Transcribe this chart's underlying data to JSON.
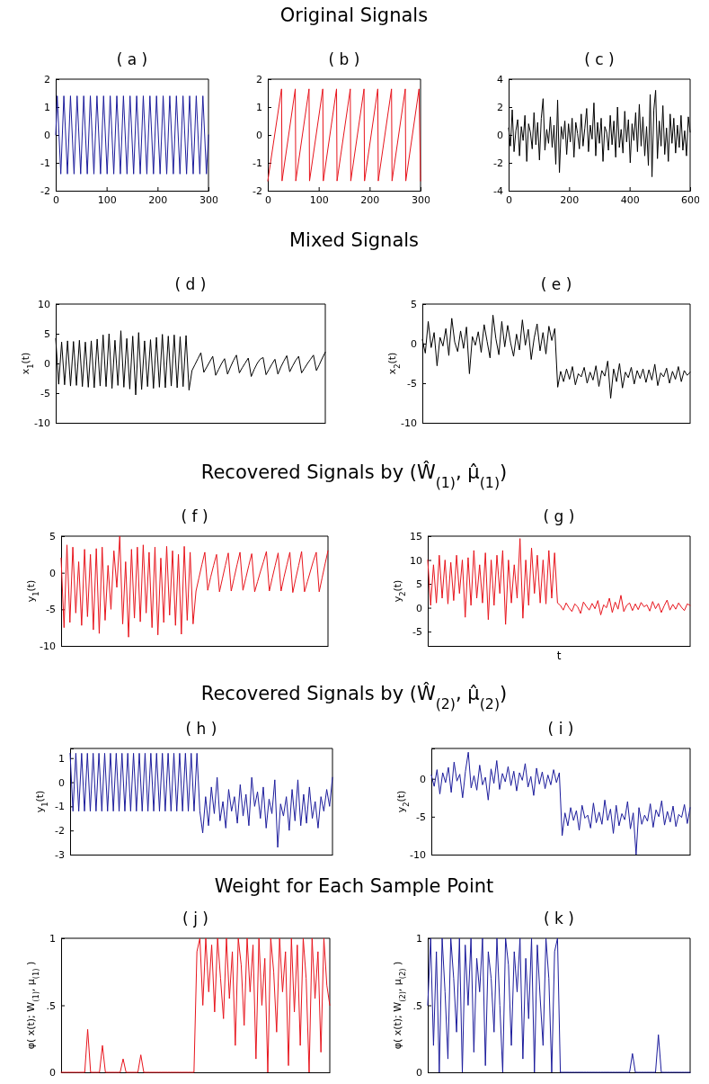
{
  "chart_data": [
    {
      "type": "other",
      "title": "Original Signals"
    },
    {
      "type": "line",
      "title": "( a )",
      "xlim": [
        0,
        300
      ],
      "xticks": [
        0,
        100,
        200,
        300
      ],
      "ylim": [
        -2,
        2
      ],
      "yticks": [
        -2,
        -1,
        0,
        1,
        2
      ],
      "series": [
        {
          "color": "#1c1c9c",
          "x": [
            0,
            3,
            10,
            16,
            23,
            29,
            36,
            42,
            49,
            55,
            62,
            68,
            75,
            81,
            88,
            94,
            101,
            107,
            114,
            120,
            127,
            133,
            140,
            146,
            153,
            159,
            166,
            172,
            179,
            185,
            192,
            198,
            205,
            211,
            218,
            224,
            231,
            237,
            244,
            250,
            257,
            263,
            270,
            276,
            283,
            289,
            296,
            300
          ],
          "values": [
            0,
            1.4,
            -1.4,
            1.4,
            -1.4,
            1.4,
            -1.4,
            1.4,
            -1.4,
            1.4,
            -1.4,
            1.4,
            -1.4,
            1.4,
            -1.4,
            1.4,
            -1.4,
            1.4,
            -1.4,
            1.4,
            -1.4,
            1.4,
            -1.4,
            1.4,
            -1.4,
            1.4,
            -1.4,
            1.4,
            -1.4,
            1.4,
            -1.4,
            1.4,
            -1.4,
            1.4,
            -1.4,
            1.4,
            -1.4,
            1.4,
            -1.4,
            1.4,
            -1.4,
            1.4,
            -1.4,
            1.4,
            -1.4,
            1.4,
            -1.4,
            0
          ]
        }
      ]
    },
    {
      "type": "line",
      "title": "( b )",
      "xlim": [
        0,
        300
      ],
      "xticks": [
        0,
        100,
        200,
        300
      ],
      "ylim": [
        -2,
        2
      ],
      "yticks": [
        -2,
        -1,
        0,
        1,
        2
      ],
      "series": [
        {
          "color": "#e8141c",
          "x": [
            0,
            27,
            28,
            54,
            55,
            81,
            82,
            108,
            109,
            135,
            136,
            162,
            163,
            189,
            190,
            216,
            217,
            243,
            244,
            270,
            271,
            297,
            300
          ],
          "values": [
            -1.65,
            1.65,
            -1.65,
            1.65,
            -1.65,
            1.65,
            -1.65,
            1.65,
            -1.65,
            1.65,
            -1.65,
            1.65,
            -1.65,
            1.65,
            -1.65,
            1.65,
            -1.65,
            1.65,
            -1.65,
            1.65,
            -1.65,
            1.65,
            -1.65
          ]
        }
      ]
    },
    {
      "type": "line",
      "title": "( c )",
      "xlim": [
        0,
        600
      ],
      "xticks": [
        0,
        200,
        400,
        600
      ],
      "ylim": [
        -4,
        4
      ],
      "yticks": [
        -4,
        -2,
        0,
        2,
        4
      ],
      "series": [
        {
          "color": "#000000",
          "x": [
            0,
            6,
            12,
            18,
            24,
            30,
            36,
            42,
            48,
            54,
            60,
            66,
            72,
            78,
            84,
            90,
            96,
            102,
            108,
            114,
            120,
            126,
            132,
            138,
            144,
            150,
            156,
            162,
            168,
            174,
            180,
            186,
            192,
            198,
            204,
            210,
            216,
            222,
            228,
            234,
            240,
            246,
            252,
            258,
            264,
            270,
            276,
            282,
            288,
            294,
            300,
            306,
            312,
            318,
            324,
            330,
            336,
            342,
            348,
            354,
            360,
            366,
            372,
            378,
            384,
            390,
            396,
            402,
            408,
            414,
            420,
            426,
            432,
            438,
            444,
            450,
            456,
            462,
            468,
            474,
            480,
            486,
            492,
            498,
            504,
            510,
            516,
            522,
            528,
            534,
            540,
            546,
            552,
            558,
            564,
            570,
            576,
            582,
            588,
            594,
            600
          ],
          "values": [
            0.5,
            -0.8,
            1.8,
            -1.2,
            0.3,
            1.1,
            -1.5,
            0.6,
            -0.4,
            1.4,
            -1.9,
            0.8,
            0.2,
            -1.0,
            1.6,
            -0.7,
            0.9,
            -1.8,
            1.2,
            2.6,
            -1.1,
            0.4,
            -0.6,
            1.3,
            -0.9,
            0.7,
            -2.1,
            2.5,
            -2.7,
            0.6,
            -0.3,
            1.0,
            -1.4,
            0.8,
            -0.5,
            1.2,
            -1.6,
            0.9,
            0.1,
            -1.0,
            1.5,
            -0.8,
            0.5,
            1.9,
            -1.2,
            0.7,
            -0.3,
            2.3,
            -1.5,
            0.9,
            -0.6,
            1.2,
            -1.9,
            0.6,
            0.2,
            -1.1,
            1.4,
            -0.7,
            1.0,
            -1.6,
            2.0,
            -0.9,
            0.4,
            -1.3,
            1.7,
            -0.5,
            1.1,
            -2.0,
            0.8,
            -0.4,
            1.6,
            -1.2,
            2.2,
            -0.8,
            1.3,
            -1.5,
            0.6,
            -2.2,
            2.9,
            -3.0,
            1.8,
            3.2,
            -1.7,
            1.0,
            -0.8,
            2.1,
            -1.4,
            0.5,
            -1.9,
            1.5,
            -0.6,
            1.2,
            -1.3,
            0.7,
            -0.9,
            1.4,
            -1.1,
            0.3,
            -1.5,
            1.3,
            0.2
          ]
        }
      ]
    },
    {
      "type": "other",
      "title": "Mixed Signals"
    },
    {
      "type": "line",
      "title": "( d )",
      "ylabel": "x$_{1}$(t)",
      "ylim": [
        -10,
        10
      ],
      "yticks": [
        -10,
        -5,
        0,
        5,
        10
      ],
      "tick_labels": "y",
      "categories": [
        null,
        null,
        null,
        null,
        null,
        null,
        null,
        null,
        null,
        null,
        null,
        null,
        null,
        null,
        null,
        null,
        null,
        null,
        null,
        null,
        null,
        null,
        null,
        null,
        null,
        null,
        null,
        null,
        null,
        null,
        null,
        null,
        null,
        null,
        null,
        null,
        null,
        null,
        null,
        null,
        null,
        null,
        null,
        null,
        null,
        null,
        null,
        null,
        null,
        null,
        null,
        null,
        null,
        null,
        null,
        null,
        null,
        null,
        null,
        null,
        null,
        null,
        null,
        null,
        null,
        null,
        null,
        null,
        null,
        null,
        null,
        null,
        null,
        null,
        null,
        null,
        null,
        null,
        null,
        null,
        null,
        null,
        null,
        null,
        null,
        null,
        null,
        null,
        null,
        null,
        null,
        null
      ],
      "series": [
        {
          "color": "#000000",
          "values": [
            4.2,
            -3.5,
            3.6,
            -3.6,
            3.8,
            -3.8,
            3.7,
            -3.7,
            3.9,
            -3.9,
            3.6,
            -4.0,
            3.8,
            -4.1,
            4.1,
            -3.8,
            4.8,
            -3.9,
            5.0,
            -4.2,
            3.9,
            -3.7,
            5.5,
            -4.0,
            4.2,
            -4.3,
            4.6,
            -5.3,
            5.2,
            -4.4,
            3.8,
            -3.9,
            4.0,
            -4.2,
            4.4,
            -4.0,
            4.9,
            -4.1,
            4.6,
            -3.8,
            4.8,
            -4.1,
            4.5,
            -3.9,
            4.7,
            -4.5,
            -1.2,
            -0.2,
            0.8,
            1.8,
            -1.5,
            -0.6,
            0.3,
            1.2,
            -2.0,
            -1.0,
            0,
            0.8,
            -1.8,
            -0.6,
            0.5,
            1.4,
            -1.6,
            -0.7,
            0.1,
            0.9,
            -2.2,
            -1.0,
            0,
            0.7,
            1.0,
            -1.9,
            -1.0,
            -0.1,
            0.7,
            -1.8,
            -0.6,
            0.4,
            1.3,
            -1.4,
            -0.4,
            0.5,
            1.2,
            -1.6,
            -0.8,
            0,
            0.7,
            1.4,
            -1.2,
            -0.2,
            0.9,
            1.9
          ]
        }
      ]
    },
    {
      "type": "line",
      "title": "( e )",
      "ylabel": "x$_{2}$(t)",
      "ylim": [
        -10,
        5
      ],
      "yticks": [
        -10,
        -5,
        0,
        5
      ],
      "tick_labels": "y",
      "categories": [
        null,
        null,
        null,
        null,
        null,
        null,
        null,
        null,
        null,
        null,
        null,
        null,
        null,
        null,
        null,
        null,
        null,
        null,
        null,
        null,
        null,
        null,
        null,
        null,
        null,
        null,
        null,
        null,
        null,
        null,
        null,
        null,
        null,
        null,
        null,
        null,
        null,
        null,
        null,
        null,
        null,
        null,
        null,
        null,
        null,
        null,
        null,
        null,
        null,
        null,
        null,
        null,
        null,
        null,
        null,
        null,
        null,
        null,
        null,
        null,
        null,
        null,
        null,
        null,
        null,
        null,
        null,
        null,
        null,
        null,
        null,
        null,
        null,
        null,
        null,
        null,
        null,
        null,
        null,
        null,
        null,
        null,
        null,
        null,
        null,
        null,
        null,
        null,
        null,
        null,
        null,
        null
      ],
      "series": [
        {
          "color": "#000000",
          "values": [
            0.5,
            -1.2,
            2.8,
            -0.5,
            1.4,
            -2.8,
            0.8,
            -0.3,
            1.9,
            -1.5,
            3.2,
            0.2,
            -1.0,
            1.6,
            -0.6,
            2.1,
            -3.8,
            0.9,
            -0.2,
            1.5,
            -1.1,
            2.4,
            0.3,
            -1.8,
            3.6,
            0.6,
            -1.4,
            2.8,
            -0.4,
            2.3,
            0.1,
            -1.6,
            1.2,
            -0.8,
            3.0,
            -0.2,
            1.8,
            -2.0,
            0.7,
            2.5,
            -0.9,
            1.4,
            -1.3,
            2.2,
            0.4,
            1.9,
            -5.5,
            -3.5,
            -4.8,
            -3.2,
            -4.5,
            -2.9,
            -5.2,
            -3.8,
            -4.2,
            -3.0,
            -5.0,
            -3.6,
            -4.6,
            -2.8,
            -5.4,
            -3.4,
            -4.1,
            -2.2,
            -6.9,
            -3.2,
            -4.8,
            -2.5,
            -5.6,
            -3.6,
            -4.3,
            -3.0,
            -5.1,
            -3.4,
            -4.4,
            -3.2,
            -4.9,
            -3.3,
            -4.6,
            -2.6,
            -5.3,
            -3.7,
            -4.2,
            -3.1,
            -5.0,
            -3.5,
            -4.5,
            -2.9,
            -4.8,
            -3.4,
            -4.0,
            -3.6
          ]
        }
      ]
    },
    {
      "type": "other",
      "title": "Recovered Signals by (Ŵ$_{(1)}$, μ̂$_{(1)}$)"
    },
    {
      "type": "line",
      "title": "( f )",
      "ylabel": "y$_{1}$(t)",
      "ylim": [
        -10,
        5
      ],
      "yticks": [
        -10,
        -5,
        0,
        5
      ],
      "tick_labels": "y",
      "categories": [
        null,
        null,
        null,
        null,
        null,
        null,
        null,
        null,
        null,
        null,
        null,
        null,
        null,
        null,
        null,
        null,
        null,
        null,
        null,
        null,
        null,
        null,
        null,
        null,
        null,
        null,
        null,
        null,
        null,
        null,
        null,
        null,
        null,
        null,
        null,
        null,
        null,
        null,
        null,
        null,
        null,
        null,
        null,
        null,
        null,
        null,
        null,
        null,
        null,
        null,
        null,
        null,
        null,
        null,
        null,
        null,
        null,
        null,
        null,
        null,
        null,
        null,
        null,
        null,
        null,
        null,
        null,
        null,
        null,
        null,
        null,
        null,
        null,
        null,
        null,
        null,
        null,
        null,
        null,
        null,
        null,
        null,
        null,
        null,
        null,
        null,
        null,
        null,
        null,
        null,
        null,
        null
      ],
      "series": [
        {
          "color": "#e8141c",
          "values": [
            2,
            -7.5,
            3.8,
            -6.8,
            3.5,
            -5.5,
            1.5,
            -7.2,
            3.2,
            -6.0,
            2.5,
            -7.8,
            3.3,
            -8.3,
            3.5,
            -6.5,
            1.0,
            -5.0,
            3.0,
            -2.0,
            5.0,
            -7.0,
            1.5,
            -8.8,
            3.2,
            -6.2,
            3.5,
            -6.7,
            3.8,
            -5.5,
            2.8,
            -7.5,
            3.5,
            -8.5,
            2.0,
            -6.8,
            3.6,
            -5.8,
            3.0,
            -7.2,
            2.5,
            -8.4,
            3.6,
            -6.5,
            2.8,
            -7.0,
            -2.5,
            -0.7,
            1.1,
            2.8,
            -2.4,
            -0.6,
            1.0,
            2.5,
            -2.6,
            -0.8,
            1.0,
            2.7,
            -2.5,
            -0.7,
            1.1,
            2.8,
            -2.4,
            -0.7,
            1.0,
            2.6,
            -2.6,
            -1.2,
            0.2,
            1.5,
            2.9,
            -2.5,
            -0.7,
            1.0,
            2.7,
            -2.5,
            -0.6,
            1.1,
            2.8,
            -2.7,
            -0.8,
            1.0,
            2.9,
            -2.6,
            -1.2,
            0.2,
            1.6,
            2.8,
            -2.6,
            -0.7,
            1.2,
            3.0
          ]
        }
      ]
    },
    {
      "type": "line",
      "title": "( g )",
      "ylabel": "y$_{2}$(t)",
      "xlabel": "t",
      "ylim": [
        -8,
        15
      ],
      "yticks": [
        -5,
        0,
        5,
        10,
        15
      ],
      "tick_labels": "y",
      "categories": [
        null,
        null,
        null,
        null,
        null,
        null,
        null,
        null,
        null,
        null,
        null,
        null,
        null,
        null,
        null,
        null,
        null,
        null,
        null,
        null,
        null,
        null,
        null,
        null,
        null,
        null,
        null,
        null,
        null,
        null,
        null,
        null,
        null,
        null,
        null,
        null,
        null,
        null,
        null,
        null,
        null,
        null,
        null,
        null,
        null,
        null,
        null,
        null,
        null,
        null,
        null,
        null,
        null,
        null,
        null,
        null,
        null,
        null,
        null,
        null,
        null,
        null,
        null,
        null,
        null,
        null,
        null,
        null,
        null,
        null,
        null,
        null,
        null,
        null,
        null,
        null,
        null,
        null,
        null,
        null,
        null,
        null,
        null,
        null,
        null,
        null,
        null,
        null,
        null,
        null,
        null,
        null
      ],
      "series": [
        {
          "color": "#e8141c",
          "values": [
            10,
            0.5,
            9,
            1,
            11,
            2,
            10,
            0.8,
            9.5,
            1.5,
            11,
            3,
            10,
            -2,
            10.5,
            0.5,
            12,
            2,
            9,
            1,
            11.5,
            -2.5,
            10,
            0.5,
            11,
            3,
            12,
            -3.5,
            10,
            1,
            9,
            2,
            14.5,
            -2.2,
            10,
            0.5,
            12.5,
            3,
            11,
            1,
            10,
            0.8,
            12,
            2,
            11.5,
            1,
            0.5,
            -0.5,
            1,
            0,
            -0.8,
            0.8,
            0.2,
            -1.2,
            1.2,
            0.3,
            -0.5,
            0.9,
            -0.2,
            1.5,
            -1.5,
            0.6,
            0,
            2.0,
            -1.0,
            1.2,
            -0.3,
            2.6,
            -0.8,
            0.5,
            1.0,
            -0.6,
            0.8,
            -0.4,
            1.1,
            0.2,
            0.6,
            -0.7,
            1.3,
            -0.2,
            0.9,
            -1.0,
            0.4,
            1.6,
            -0.5,
            0.7,
            -0.3,
            1.0,
            0.1,
            -0.6,
            0.8,
            0.5
          ]
        }
      ]
    },
    {
      "type": "other",
      "title": "Recovered Signals by (Ŵ$_{(2)}$, μ̂$_{(2)}$)"
    },
    {
      "type": "line",
      "title": "( h )",
      "ylabel": "y$_{1}$(t)",
      "ylim": [
        -3,
        1.4
      ],
      "yticks": [
        -3,
        -2,
        -1,
        0,
        1
      ],
      "tick_labels": "y",
      "categories": [
        null,
        null,
        null,
        null,
        null,
        null,
        null,
        null,
        null,
        null,
        null,
        null,
        null,
        null,
        null,
        null,
        null,
        null,
        null,
        null,
        null,
        null,
        null,
        null,
        null,
        null,
        null,
        null,
        null,
        null,
        null,
        null,
        null,
        null,
        null,
        null,
        null,
        null,
        null,
        null,
        null,
        null,
        null,
        null,
        null,
        null,
        null,
        null,
        null,
        null,
        null,
        null,
        null,
        null,
        null,
        null,
        null,
        null,
        null,
        null,
        null,
        null,
        null,
        null,
        null,
        null,
        null,
        null,
        null,
        null,
        null,
        null,
        null,
        null,
        null,
        null,
        null,
        null,
        null,
        null,
        null,
        null,
        null,
        null,
        null,
        null,
        null,
        null,
        null,
        null,
        null,
        null
      ],
      "series": [
        {
          "color": "#1c1c9c",
          "values": [
            1.2,
            -1.2,
            1.2,
            -1.2,
            1.2,
            -1.2,
            1.2,
            -1.2,
            1.2,
            -1.2,
            1.2,
            -1.2,
            1.2,
            -1.2,
            1.2,
            -1.2,
            1.2,
            -1.2,
            1.2,
            -1.2,
            1.2,
            -1.2,
            1.2,
            -1.2,
            1.2,
            -1.2,
            1.2,
            -1.2,
            1.2,
            -1.2,
            1.2,
            -1.2,
            1.2,
            -1.2,
            1.2,
            -1.2,
            1.2,
            -1.2,
            1.2,
            -1.2,
            1.2,
            -1.2,
            1.2,
            -1.2,
            1.2,
            -1.2,
            -2.1,
            -0.6,
            -1.8,
            -0.2,
            -1.3,
            0.2,
            -1.6,
            -0.8,
            -1.9,
            -0.3,
            -1.2,
            -0.6,
            -1.7,
            -0.1,
            -1.4,
            -0.5,
            -1.8,
            0.2,
            -1.0,
            -0.4,
            -1.5,
            -0.2,
            -1.9,
            -0.7,
            -1.3,
            0.1,
            -2.7,
            -0.9,
            -1.4,
            -0.6,
            -2.0,
            -0.3,
            -1.6,
            0.1,
            -1.8,
            -0.5,
            -1.7,
            -0.2,
            -1.5,
            -0.8,
            -1.9,
            -0.6,
            -1.2,
            -0.3,
            -1.0,
            0.2
          ]
        }
      ]
    },
    {
      "type": "line",
      "title": "( i )",
      "ylabel": "y$_{2}$(t)",
      "ylim": [
        -10,
        4
      ],
      "yticks": [
        -10,
        -5,
        0
      ],
      "tick_labels": "y",
      "categories": [
        null,
        null,
        null,
        null,
        null,
        null,
        null,
        null,
        null,
        null,
        null,
        null,
        null,
        null,
        null,
        null,
        null,
        null,
        null,
        null,
        null,
        null,
        null,
        null,
        null,
        null,
        null,
        null,
        null,
        null,
        null,
        null,
        null,
        null,
        null,
        null,
        null,
        null,
        null,
        null,
        null,
        null,
        null,
        null,
        null,
        null,
        null,
        null,
        null,
        null,
        null,
        null,
        null,
        null,
        null,
        null,
        null,
        null,
        null,
        null,
        null,
        null,
        null,
        null,
        null,
        null,
        null,
        null,
        null,
        null,
        null,
        null,
        null,
        null,
        null,
        null,
        null,
        null,
        null,
        null,
        null,
        null,
        null,
        null,
        null,
        null,
        null,
        null,
        null,
        null,
        null,
        null
      ],
      "series": [
        {
          "color": "#1c1c9c",
          "values": [
            0.5,
            -1.0,
            1.2,
            -2.0,
            0.8,
            -0.5,
            1.5,
            -1.8,
            2.2,
            -0.3,
            0.6,
            -2.5,
            1.0,
            3.5,
            -1.2,
            0.4,
            -1.5,
            1.8,
            -0.8,
            0.2,
            -2.8,
            1.3,
            -0.6,
            2.4,
            -1.4,
            0.7,
            -0.4,
            1.6,
            -0.9,
            1.0,
            -1.6,
            0.8,
            -0.2,
            2.0,
            -1.1,
            0.3,
            -2.2,
            1.4,
            -0.7,
            0.9,
            -1.3,
            0.5,
            -0.8,
            1.2,
            -0.5,
            0.8,
            -7.5,
            -4.5,
            -6.2,
            -3.8,
            -5.5,
            -4.2,
            -6.8,
            -3.5,
            -5.2,
            -4.8,
            -6.5,
            -3.2,
            -5.8,
            -4.4,
            -6.0,
            -2.8,
            -5.5,
            -4.0,
            -7.2,
            -3.5,
            -6.2,
            -4.6,
            -5.4,
            -3.0,
            -6.6,
            -4.5,
            -10.0,
            -3.8,
            -6.0,
            -4.8,
            -5.6,
            -3.3,
            -6.4,
            -4.1,
            -5.0,
            -2.9,
            -6.1,
            -4.3,
            -5.7,
            -3.6,
            -6.3,
            -4.7,
            -5.1,
            -3.4,
            -5.9,
            -3.8
          ]
        }
      ]
    },
    {
      "type": "other",
      "title": "Weight for Each Sample Point"
    },
    {
      "type": "line",
      "title": "( j )",
      "ylabel": "φ( x(t); W$_{(1)}$,  μ$_{(1)}$ )",
      "ylim": [
        0,
        1
      ],
      "yticks": [
        0,
        {
          "value": 0.5,
          "label": ".5"
        },
        1
      ],
      "tick_labels": "y",
      "categories": [
        null,
        null,
        null,
        null,
        null,
        null,
        null,
        null,
        null,
        null,
        null,
        null,
        null,
        null,
        null,
        null,
        null,
        null,
        null,
        null,
        null,
        null,
        null,
        null,
        null,
        null,
        null,
        null,
        null,
        null,
        null,
        null,
        null,
        null,
        null,
        null,
        null,
        null,
        null,
        null,
        null,
        null,
        null,
        null,
        null,
        null,
        null,
        null,
        null,
        null,
        null,
        null,
        null,
        null,
        null,
        null,
        null,
        null,
        null,
        null,
        null,
        null,
        null,
        null,
        null,
        null,
        null,
        null,
        null,
        null,
        null,
        null,
        null,
        null,
        null,
        null,
        null,
        null,
        null,
        null,
        null,
        null,
        null,
        null,
        null,
        null,
        null,
        null,
        null,
        null,
        null,
        null
      ],
      "series": [
        {
          "color": "#e8141c",
          "values": [
            0,
            0,
            0,
            0,
            0,
            0,
            0,
            0,
            0,
            0.32,
            0,
            0,
            0,
            0,
            0.2,
            0,
            0,
            0,
            0,
            0,
            0,
            0.1,
            0,
            0,
            0,
            0,
            0,
            0.13,
            0,
            0,
            0,
            0,
            0,
            0,
            0,
            0,
            0,
            0,
            0,
            0,
            0,
            0,
            0,
            0,
            0,
            0,
            0.9,
            1.0,
            0.5,
            1.0,
            0.6,
            0.95,
            0.45,
            1.0,
            0.7,
            0.4,
            1.0,
            0.55,
            0.9,
            0.2,
            1.0,
            0.8,
            0.35,
            1.0,
            0.6,
            0.95,
            0.1,
            1.0,
            0.5,
            0.85,
            0.0,
            1.0,
            0.75,
            0.3,
            1.0,
            0.6,
            0.9,
            0.05,
            1.0,
            0.45,
            0.95,
            0.2,
            1.0,
            0.7,
            0.0,
            1.0,
            0.55,
            0.9,
            0.15,
            1.0,
            0.65,
            0.5
          ]
        }
      ]
    },
    {
      "type": "line",
      "title": "( k )",
      "ylabel": "φ( x(t); W$_{(2)}$,  μ$_{(2)}$ )",
      "ylim": [
        0,
        1
      ],
      "yticks": [
        0,
        {
          "value": 0.5,
          "label": ".5"
        },
        1
      ],
      "tick_labels": "y",
      "categories": [
        null,
        null,
        null,
        null,
        null,
        null,
        null,
        null,
        null,
        null,
        null,
        null,
        null,
        null,
        null,
        null,
        null,
        null,
        null,
        null,
        null,
        null,
        null,
        null,
        null,
        null,
        null,
        null,
        null,
        null,
        null,
        null,
        null,
        null,
        null,
        null,
        null,
        null,
        null,
        null,
        null,
        null,
        null,
        null,
        null,
        null,
        null,
        null,
        null,
        null,
        null,
        null,
        null,
        null,
        null,
        null,
        null,
        null,
        null,
        null,
        null,
        null,
        null,
        null,
        null,
        null,
        null,
        null,
        null,
        null,
        null,
        null,
        null,
        null,
        null,
        null,
        null,
        null,
        null,
        null,
        null,
        null,
        null,
        null,
        null,
        null,
        null,
        null,
        null,
        null,
        null,
        null
      ],
      "series": [
        {
          "color": "#1c1c9c",
          "values": [
            0.5,
            1.0,
            0.2,
            0.9,
            0.0,
            1.0,
            0.6,
            0.1,
            1.0,
            0.7,
            0.3,
            1.0,
            0.0,
            0.95,
            0.5,
            1.0,
            0.15,
            0.85,
            0.6,
            1.0,
            0.05,
            0.9,
            0.7,
            0.3,
            1.0,
            0.5,
            0.0,
            1.0,
            0.8,
            0.2,
            0.9,
            0.6,
            1.0,
            0.1,
            0.85,
            0.4,
            1.0,
            0.0,
            0.95,
            0.55,
            0.2,
            1.0,
            0.7,
            0.0,
            0.9,
            1.0,
            0,
            0,
            0,
            0,
            0,
            0,
            0,
            0,
            0,
            0,
            0,
            0,
            0,
            0,
            0,
            0,
            0,
            0,
            0,
            0,
            0,
            0,
            0,
            0,
            0,
            0.14,
            0,
            0,
            0,
            0,
            0,
            0,
            0,
            0,
            0.28,
            0,
            0,
            0,
            0,
            0,
            0,
            0,
            0,
            0,
            0,
            0
          ]
        }
      ]
    }
  ]
}
